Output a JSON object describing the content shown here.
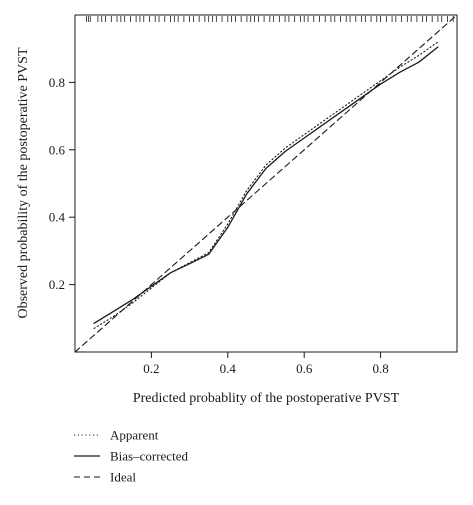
{
  "chart_data": {
    "type": "line",
    "xlabel": "Predicted probablity of the postoperative PVST",
    "ylabel": "Observed probability of the postoperative PVST",
    "xlim": [
      0.0,
      1.0
    ],
    "ylim": [
      0.0,
      1.0
    ],
    "x_ticks": [
      {
        "value": 0.2,
        "label": "0.2"
      },
      {
        "value": 0.4,
        "label": "0.4"
      },
      {
        "value": 0.6,
        "label": "0.6"
      },
      {
        "value": 0.8,
        "label": "0.8"
      }
    ],
    "y_ticks": [
      {
        "value": 0.2,
        "label": "0.2"
      },
      {
        "value": 0.4,
        "label": "0.4"
      },
      {
        "value": 0.6,
        "label": "0.6"
      },
      {
        "value": 0.8,
        "label": "0.8"
      }
    ],
    "grid": false,
    "legend_position": "bottom-left",
    "series": [
      {
        "name": "Apparent",
        "style": "dotted",
        "color": "#1a1a1a",
        "points": [
          [
            0.05,
            0.07
          ],
          [
            0.1,
            0.105
          ],
          [
            0.15,
            0.145
          ],
          [
            0.2,
            0.19
          ],
          [
            0.25,
            0.235
          ],
          [
            0.3,
            0.265
          ],
          [
            0.35,
            0.295
          ],
          [
            0.4,
            0.38
          ],
          [
            0.45,
            0.48
          ],
          [
            0.5,
            0.555
          ],
          [
            0.55,
            0.605
          ],
          [
            0.6,
            0.645
          ],
          [
            0.65,
            0.685
          ],
          [
            0.7,
            0.725
          ],
          [
            0.75,
            0.765
          ],
          [
            0.8,
            0.805
          ],
          [
            0.85,
            0.845
          ],
          [
            0.9,
            0.88
          ],
          [
            0.95,
            0.92
          ]
        ]
      },
      {
        "name": "Bias–corrected",
        "style": "solid",
        "color": "#1a1a1a",
        "points": [
          [
            0.05,
            0.085
          ],
          [
            0.1,
            0.12
          ],
          [
            0.15,
            0.155
          ],
          [
            0.2,
            0.195
          ],
          [
            0.25,
            0.235
          ],
          [
            0.3,
            0.262
          ],
          [
            0.35,
            0.29
          ],
          [
            0.4,
            0.37
          ],
          [
            0.45,
            0.47
          ],
          [
            0.5,
            0.545
          ],
          [
            0.55,
            0.595
          ],
          [
            0.6,
            0.635
          ],
          [
            0.65,
            0.675
          ],
          [
            0.7,
            0.715
          ],
          [
            0.75,
            0.755
          ],
          [
            0.8,
            0.795
          ],
          [
            0.85,
            0.83
          ],
          [
            0.9,
            0.86
          ],
          [
            0.95,
            0.905
          ]
        ]
      },
      {
        "name": "Ideal",
        "style": "dashed",
        "color": "#1a1a1a",
        "points": [
          [
            0.0,
            0.0
          ],
          [
            1.0,
            1.0
          ]
        ]
      }
    ],
    "rug": [
      0.03,
      0.035,
      0.04,
      0.06,
      0.07,
      0.08,
      0.095,
      0.11,
      0.12,
      0.13,
      0.145,
      0.16,
      0.17,
      0.18,
      0.195,
      0.21,
      0.22,
      0.235,
      0.25,
      0.26,
      0.27,
      0.285,
      0.3,
      0.31,
      0.325,
      0.34,
      0.35,
      0.36,
      0.37,
      0.385,
      0.4,
      0.41,
      0.42,
      0.435,
      0.45,
      0.46,
      0.47,
      0.48,
      0.495,
      0.51,
      0.52,
      0.535,
      0.55,
      0.56,
      0.575,
      0.59,
      0.6,
      0.61,
      0.625,
      0.64,
      0.655,
      0.67,
      0.68,
      0.695,
      0.71,
      0.72,
      0.735,
      0.75,
      0.76,
      0.775,
      0.79,
      0.8,
      0.815,
      0.83,
      0.84,
      0.855,
      0.87,
      0.88,
      0.895,
      0.91,
      0.92,
      0.935,
      0.95,
      0.96,
      0.975,
      0.99
    ]
  }
}
